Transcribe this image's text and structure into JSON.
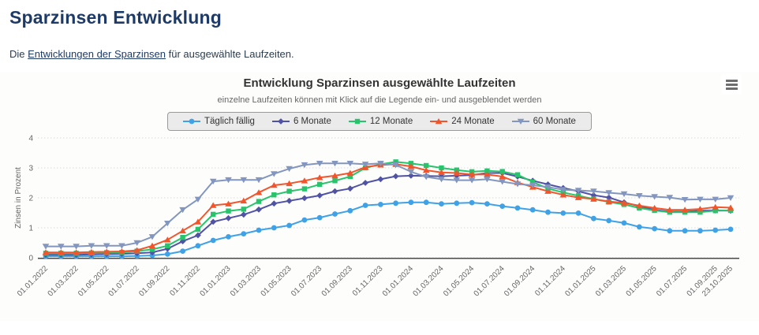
{
  "page": {
    "title": "Sparzinsen Entwicklung",
    "intro": {
      "prefix": "Die ",
      "link_text": "Entwicklungen der Sparzinsen",
      "suffix": " für ausgewählte Laufzeiten."
    }
  },
  "colors": {
    "heading": "#1e3a66",
    "link": "#1e3a66",
    "axis_line": "#4a4a4a",
    "grid_line": "#dcdcdc",
    "tick_label": "#666666",
    "legend_bg": "#ebebeb",
    "legend_border": "#9a9a9a"
  },
  "menu_icon": "hamburger-icon",
  "chart_data": {
    "type": "line",
    "title": "Entwicklung Sparzinsen ausgewählte Laufzeiten",
    "subtitle": "einzelne Laufzeiten können mit Klick auf die Legende ein- und ausgeblendet werden",
    "ylabel": "Zinsen in Prozent",
    "xlabel": "",
    "ylim": [
      0,
      4
    ],
    "yticks": [
      0,
      1,
      2,
      3,
      4
    ],
    "grid": true,
    "legend_position": "top",
    "x_tick_rule": "every second month plus final date",
    "x": [
      "01.01.2022",
      "01.02.2022",
      "01.03.2022",
      "01.04.2022",
      "01.05.2022",
      "01.06.2022",
      "01.07.2022",
      "01.08.2022",
      "01.09.2022",
      "01.10.2022",
      "01.11.2022",
      "01.12.2022",
      "01.01.2023",
      "01.02.2023",
      "01.03.2023",
      "01.04.2023",
      "01.05.2023",
      "01.06.2023",
      "01.07.2023",
      "01.08.2023",
      "01.09.2023",
      "01.10.2023",
      "01.11.2023",
      "01.12.2023",
      "01.01.2024",
      "01.02.2024",
      "01.03.2024",
      "01.04.2024",
      "01.05.2024",
      "01.06.2024",
      "01.07.2024",
      "01.08.2024",
      "01.09.2024",
      "01.10.2024",
      "01.11.2024",
      "01.12.2024",
      "01.01.2025",
      "01.02.2025",
      "01.03.2025",
      "01.04.2025",
      "01.05.2025",
      "01.06.2025",
      "01.07.2025",
      "01.08.2025",
      "01.09.2025",
      "23.10.2025"
    ],
    "series": [
      {
        "name": "Täglich fällig",
        "color": "#3fa2e7",
        "marker": "circle",
        "values": [
          0.05,
          0.05,
          0.05,
          0.05,
          0.05,
          0.05,
          0.06,
          0.08,
          0.12,
          0.22,
          0.4,
          0.58,
          0.7,
          0.8,
          0.92,
          1.0,
          1.08,
          1.26,
          1.34,
          1.46,
          1.57,
          1.75,
          1.78,
          1.82,
          1.85,
          1.85,
          1.8,
          1.82,
          1.84,
          1.8,
          1.72,
          1.66,
          1.6,
          1.52,
          1.49,
          1.49,
          1.31,
          1.24,
          1.16,
          1.03,
          0.97,
          0.9,
          0.9,
          0.9,
          0.92,
          0.95
        ]
      },
      {
        "name": "6 Monate",
        "color": "#5053a5",
        "marker": "diamond",
        "values": [
          0.1,
          0.1,
          0.1,
          0.11,
          0.12,
          0.13,
          0.15,
          0.18,
          0.3,
          0.55,
          0.75,
          1.2,
          1.32,
          1.44,
          1.61,
          1.81,
          1.9,
          1.99,
          2.08,
          2.22,
          2.31,
          2.5,
          2.62,
          2.72,
          2.74,
          2.73,
          2.72,
          2.74,
          2.76,
          2.83,
          2.83,
          2.71,
          2.57,
          2.45,
          2.33,
          2.22,
          2.09,
          2.01,
          1.85,
          1.72,
          1.6,
          1.54,
          1.54,
          1.57,
          1.58,
          1.57
        ]
      },
      {
        "name": "12 Monate",
        "color": "#27c46c",
        "marker": "square",
        "values": [
          0.15,
          0.15,
          0.15,
          0.16,
          0.17,
          0.18,
          0.22,
          0.28,
          0.4,
          0.68,
          0.95,
          1.45,
          1.56,
          1.62,
          1.88,
          2.1,
          2.22,
          2.3,
          2.45,
          2.57,
          2.71,
          3.0,
          3.12,
          3.2,
          3.15,
          3.08,
          3.0,
          2.93,
          2.87,
          2.9,
          2.88,
          2.77,
          2.53,
          2.31,
          2.18,
          2.07,
          1.96,
          1.86,
          1.78,
          1.66,
          1.58,
          1.52,
          1.52,
          1.52,
          1.57,
          1.58
        ]
      },
      {
        "name": "24 Monate",
        "color": "#f2552c",
        "marker": "triangle",
        "values": [
          0.18,
          0.18,
          0.18,
          0.19,
          0.2,
          0.21,
          0.25,
          0.4,
          0.6,
          0.9,
          1.2,
          1.75,
          1.8,
          1.9,
          2.18,
          2.42,
          2.48,
          2.57,
          2.68,
          2.74,
          2.83,
          3.03,
          3.1,
          3.12,
          3.05,
          2.92,
          2.85,
          2.83,
          2.78,
          2.78,
          2.71,
          2.51,
          2.36,
          2.22,
          2.1,
          2.01,
          1.96,
          1.88,
          1.83,
          1.74,
          1.66,
          1.6,
          1.6,
          1.63,
          1.69,
          1.67
        ]
      },
      {
        "name": "60 Monate",
        "color": "#8396bf",
        "marker": "triangle-down",
        "values": [
          0.38,
          0.38,
          0.38,
          0.4,
          0.4,
          0.4,
          0.5,
          0.7,
          1.15,
          1.6,
          1.95,
          2.55,
          2.6,
          2.6,
          2.6,
          2.8,
          2.97,
          3.1,
          3.15,
          3.15,
          3.15,
          3.12,
          3.15,
          3.1,
          2.87,
          2.7,
          2.62,
          2.59,
          2.59,
          2.62,
          2.54,
          2.46,
          2.42,
          2.36,
          2.27,
          2.25,
          2.22,
          2.17,
          2.13,
          2.07,
          2.04,
          2.01,
          1.94,
          1.95,
          1.95,
          2.0
        ]
      }
    ]
  }
}
